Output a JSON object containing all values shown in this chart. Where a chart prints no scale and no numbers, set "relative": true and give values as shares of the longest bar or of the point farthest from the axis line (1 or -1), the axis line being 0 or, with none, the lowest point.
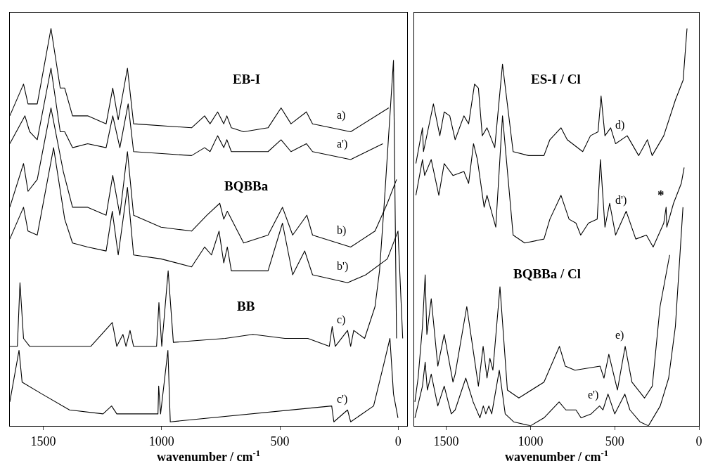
{
  "chart_data": [
    {
      "type": "line",
      "relative": true,
      "xlabel": "wavenumber / cm$^{-1}$",
      "xlim": [
        1641,
        -38
      ],
      "xticks": [
        1500,
        1000,
        500,
        0
      ],
      "tick_labels": "x",
      "annotations": [
        "EB-I",
        "BQBBa",
        "BB"
      ],
      "series": [
        {
          "name": "a)",
          "color": "#000000",
          "x": [
            1641,
            1583,
            1564,
            1525,
            1467,
            1428,
            1409,
            1376,
            1312,
            1234,
            1206,
            1183,
            1144,
            1118,
            873,
            818,
            795,
            763,
            737,
            724,
            705,
            653,
            550,
            495,
            453,
            388,
            362,
            201,
            40
          ],
          "values": [
            0.78,
            0.86,
            0.81,
            0.81,
            1.0,
            0.85,
            0.85,
            0.78,
            0.78,
            0.76,
            0.85,
            0.77,
            0.9,
            0.76,
            0.75,
            0.78,
            0.76,
            0.79,
            0.76,
            0.78,
            0.75,
            0.74,
            0.75,
            0.8,
            0.76,
            0.79,
            0.76,
            0.74,
            0.8
          ]
        },
        {
          "name": "a')",
          "color": "#000000",
          "x": [
            1641,
            1577,
            1557,
            1525,
            1467,
            1428,
            1409,
            1376,
            1312,
            1234,
            1206,
            1176,
            1141,
            1118,
            873,
            818,
            795,
            763,
            737,
            724,
            705,
            550,
            495,
            453,
            388,
            362,
            201,
            65
          ],
          "values": [
            0.71,
            0.78,
            0.74,
            0.72,
            0.9,
            0.74,
            0.74,
            0.7,
            0.71,
            0.7,
            0.78,
            0.7,
            0.81,
            0.69,
            0.68,
            0.7,
            0.69,
            0.73,
            0.7,
            0.72,
            0.69,
            0.69,
            0.72,
            0.69,
            0.71,
            0.69,
            0.67,
            0.71
          ]
        },
        {
          "name": "b)",
          "color": "#000000",
          "x": [
            1641,
            1583,
            1564,
            1525,
            1467,
            1415,
            1376,
            1312,
            1234,
            1206,
            1176,
            1144,
            1118,
            1002,
            873,
            808,
            754,
            737,
            722,
            653,
            550,
            489,
            446,
            386,
            362,
            201,
            98,
            46,
            7
          ],
          "values": [
            0.55,
            0.66,
            0.59,
            0.62,
            0.8,
            0.64,
            0.55,
            0.55,
            0.53,
            0.63,
            0.53,
            0.69,
            0.53,
            0.5,
            0.49,
            0.53,
            0.56,
            0.52,
            0.54,
            0.46,
            0.48,
            0.55,
            0.48,
            0.53,
            0.48,
            0.45,
            0.49,
            0.56,
            0.62
          ]
        },
        {
          "name": "b')",
          "color": "#000000",
          "x": [
            1641,
            1583,
            1564,
            1525,
            1456,
            1409,
            1376,
            1312,
            1234,
            1208,
            1183,
            1144,
            1118,
            1002,
            873,
            818,
            789,
            757,
            737,
            722,
            705,
            550,
            489,
            446,
            395,
            362,
            214,
            137,
            46,
            1,
            -19
          ],
          "values": [
            0.47,
            0.55,
            0.49,
            0.48,
            0.7,
            0.52,
            0.46,
            0.45,
            0.44,
            0.54,
            0.43,
            0.6,
            0.43,
            0.42,
            0.4,
            0.45,
            0.43,
            0.49,
            0.41,
            0.45,
            0.39,
            0.39,
            0.51,
            0.38,
            0.44,
            0.38,
            0.36,
            0.38,
            0.42,
            0.49,
            0.22
          ]
        },
        {
          "name": "c)",
          "color": "#000000",
          "x": [
            1641,
            1609,
            1598,
            1583,
            1557,
            1299,
            1208,
            1189,
            1163,
            1150,
            1133,
            1118,
            1021,
            1011,
            999,
            972,
            950,
            731,
            614,
            479,
            382,
            291,
            279,
            266,
            214,
            201,
            188,
            142,
            98,
            79,
            59,
            20,
            7
          ],
          "values": [
            0.2,
            0.2,
            0.36,
            0.22,
            0.2,
            0.2,
            0.26,
            0.2,
            0.23,
            0.2,
            0.24,
            0.2,
            0.2,
            0.31,
            0.2,
            0.39,
            0.21,
            0.22,
            0.23,
            0.22,
            0.22,
            0.2,
            0.25,
            0.2,
            0.24,
            0.2,
            0.24,
            0.22,
            0.3,
            0.39,
            0.56,
            0.92,
            0.22
          ]
        },
        {
          "name": "c')",
          "color": "#000000",
          "x": [
            1641,
            1602,
            1589,
            1505,
            1389,
            1247,
            1211,
            1189,
            1015,
            1012,
            1004,
            973,
            963,
            281,
            272,
            214,
            201,
            104,
            59,
            35,
            20,
            1
          ],
          "values": [
            0.06,
            0.19,
            0.11,
            0.08,
            0.04,
            0.03,
            0.05,
            0.03,
            0.03,
            0.1,
            0.03,
            0.19,
            0.01,
            0.05,
            0.01,
            0.04,
            0.01,
            0.05,
            0.16,
            0.22,
            0.08,
            0.02
          ]
        }
      ]
    },
    {
      "type": "line",
      "relative": true,
      "xlabel": "wavenumber / cm$^{-1}$",
      "xlim": [
        1690,
        0
      ],
      "xticks": [
        1500,
        1000,
        500,
        0
      ],
      "tick_labels": "x",
      "annotations": [
        "ES-I / Cl",
        "BQBBa / Cl",
        "*"
      ],
      "series": [
        {
          "name": "d)",
          "color": "#000000",
          "x": [
            1680,
            1641,
            1635,
            1576,
            1538,
            1512,
            1479,
            1447,
            1395,
            1367,
            1332,
            1309,
            1286,
            1258,
            1212,
            1166,
            1103,
            1011,
            920,
            885,
            819,
            782,
            690,
            644,
            599,
            581,
            558,
            524,
            495,
            426,
            358,
            306,
            278,
            209,
            140,
            94,
            71
          ],
          "values": [
            0.66,
            0.75,
            0.69,
            0.81,
            0.73,
            0.79,
            0.78,
            0.72,
            0.78,
            0.76,
            0.86,
            0.85,
            0.73,
            0.75,
            0.7,
            0.91,
            0.69,
            0.68,
            0.68,
            0.72,
            0.75,
            0.72,
            0.69,
            0.73,
            0.74,
            0.83,
            0.73,
            0.75,
            0.71,
            0.73,
            0.68,
            0.72,
            0.68,
            0.73,
            0.82,
            0.87,
            1.0
          ]
        },
        {
          "name": "d')",
          "color": "#000000",
          "x": [
            1680,
            1641,
            1628,
            1589,
            1544,
            1512,
            1460,
            1395,
            1367,
            1338,
            1315,
            1275,
            1258,
            1206,
            1166,
            1103,
            1034,
            920,
            885,
            819,
            771,
            730,
            702,
            656,
            604,
            585,
            558,
            530,
            495,
            432,
            375,
            312,
            272,
            209,
            195,
            191,
            151,
            105,
            88
          ],
          "values": [
            0.58,
            0.67,
            0.63,
            0.67,
            0.58,
            0.66,
            0.63,
            0.64,
            0.61,
            0.71,
            0.67,
            0.55,
            0.58,
            0.5,
            0.78,
            0.48,
            0.46,
            0.47,
            0.52,
            0.58,
            0.52,
            0.51,
            0.48,
            0.51,
            0.52,
            0.67,
            0.5,
            0.56,
            0.48,
            0.54,
            0.47,
            0.48,
            0.45,
            0.51,
            0.55,
            0.5,
            0.56,
            0.61,
            0.65
          ]
        },
        {
          "name": "e)",
          "color": "#000000",
          "x": [
            1686,
            1667,
            1641,
            1625,
            1615,
            1589,
            1550,
            1512,
            1460,
            1447,
            1378,
            1309,
            1281,
            1258,
            1241,
            1223,
            1181,
            1137,
            1069,
            920,
            828,
            793,
            736,
            587,
            564,
            535,
            484,
            438,
            398,
            323,
            277,
            231,
            174
          ],
          "values": [
            0.06,
            0.12,
            0.25,
            0.38,
            0.23,
            0.32,
            0.15,
            0.23,
            0.11,
            0.13,
            0.3,
            0.1,
            0.2,
            0.12,
            0.17,
            0.14,
            0.35,
            0.09,
            0.07,
            0.11,
            0.2,
            0.15,
            0.14,
            0.15,
            0.12,
            0.18,
            0.09,
            0.2,
            0.11,
            0.07,
            0.1,
            0.3,
            0.43
          ]
        },
        {
          "name": "e')",
          "color": "#000000",
          "x": [
            1686,
            1641,
            1625,
            1612,
            1589,
            1550,
            1512,
            1470,
            1447,
            1384,
            1340,
            1330,
            1300,
            1280,
            1265,
            1247,
            1230,
            1185,
            1150,
            1100,
            1000,
            920,
            830,
            790,
            730,
            700,
            640,
            590,
            570,
            540,
            500,
            440,
            410,
            350,
            300,
            230,
            180,
            140,
            110,
            95
          ],
          "values": [
            0.02,
            0.1,
            0.16,
            0.09,
            0.13,
            0.05,
            0.1,
            0.03,
            0.04,
            0.12,
            0.06,
            0.05,
            0.02,
            0.05,
            0.03,
            0.05,
            0.03,
            0.14,
            0.03,
            0.01,
            0.0,
            0.02,
            0.06,
            0.04,
            0.04,
            0.02,
            0.03,
            0.05,
            0.04,
            0.08,
            0.03,
            0.08,
            0.04,
            0.01,
            0.0,
            0.05,
            0.12,
            0.25,
            0.45,
            0.55
          ]
        }
      ]
    }
  ]
}
